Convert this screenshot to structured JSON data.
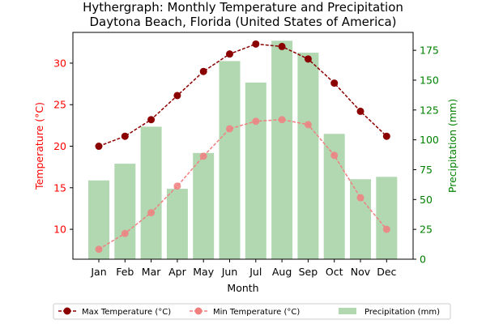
{
  "chart_data": {
    "type": "bar-line",
    "title": "Hythergraph: Monthly Temperature and Precipitation",
    "subtitle": "Daytona Beach, Florida (United States of America)",
    "xlabel": "Month",
    "ylabel_left": "Temperature (°C)",
    "ylabel_right": "Precipitation (mm)",
    "categories": [
      "Jan",
      "Feb",
      "Mar",
      "Apr",
      "May",
      "Jun",
      "Jul",
      "Aug",
      "Sep",
      "Oct",
      "Nov",
      "Dec"
    ],
    "ylim_left": [
      6.4,
      33.7
    ],
    "ylim_right": [
      0,
      190
    ],
    "yticks_left": [
      10,
      15,
      20,
      25,
      30
    ],
    "yticks_right": [
      0,
      25,
      50,
      75,
      100,
      125,
      150,
      175
    ],
    "series": [
      {
        "name": "Max Temperature (°C)",
        "kind": "line",
        "axis": "left",
        "color": "#8b0000",
        "values": [
          20.0,
          21.2,
          23.2,
          26.1,
          29.0,
          31.1,
          32.3,
          32.0,
          30.5,
          27.6,
          24.2,
          21.2
        ]
      },
      {
        "name": "Min Temperature (°C)",
        "kind": "line",
        "axis": "left",
        "color": "#f08080",
        "values": [
          7.6,
          9.5,
          12.0,
          15.2,
          18.8,
          22.1,
          23.0,
          23.2,
          22.6,
          18.9,
          13.8,
          10.0
        ]
      },
      {
        "name": "Precipitation (mm)",
        "kind": "bar",
        "axis": "right",
        "color": "#b2d8b2",
        "values": [
          66,
          80,
          111,
          59,
          89,
          166,
          148,
          183,
          173,
          105,
          67,
          69
        ]
      }
    ],
    "left_axis_color": "#ff0000",
    "right_axis_color": "#008000",
    "legend_position": "bottom-center",
    "grid": false
  }
}
